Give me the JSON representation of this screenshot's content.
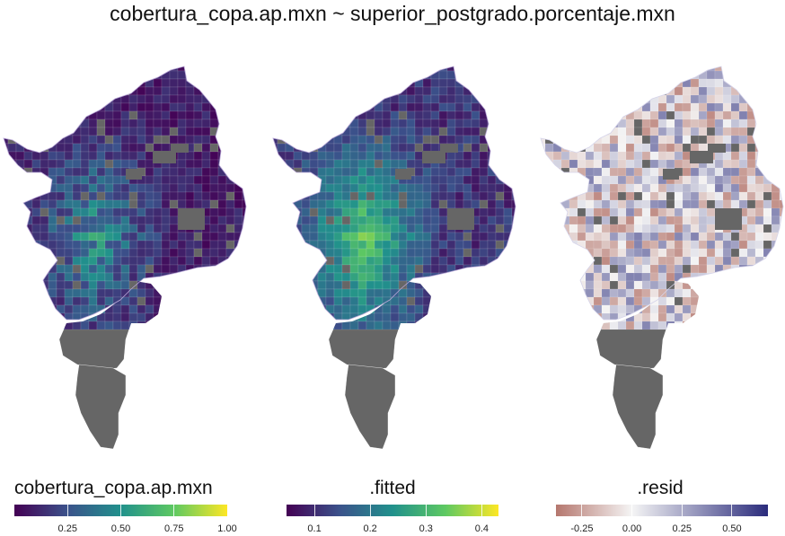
{
  "title": "cobertura_copa.ap.mxn ~ superior_postgrado.porcentaje.mxn",
  "colors": {
    "na_fill": "#666666",
    "viridis": [
      "#440154",
      "#3b528b",
      "#21918c",
      "#5ec962",
      "#fde725"
    ],
    "resid": [
      "#b5776e",
      "#f5f5f5",
      "#2b2c7c"
    ]
  },
  "panels": [
    {
      "id": "cobertura",
      "legend_title": "cobertura_copa.ap.mxn",
      "scale": "viridis",
      "ticks": [
        "0.25",
        "0.50",
        "0.75",
        "1.00"
      ],
      "tick_values": [
        0.25,
        0.5,
        0.75,
        1.0
      ],
      "range": [
        0.0,
        1.0
      ]
    },
    {
      "id": "fitted",
      "legend_title": ".fitted",
      "scale": "viridis",
      "ticks": [
        "0.1",
        "0.2",
        "0.3",
        "0.4"
      ],
      "tick_values": [
        0.1,
        0.2,
        0.3,
        0.4
      ],
      "range": [
        0.05,
        0.43
      ]
    },
    {
      "id": "resid",
      "legend_title": ".resid",
      "scale": "diverging",
      "ticks": [
        "-0.25",
        "0.00",
        "0.25",
        "0.50"
      ],
      "tick_values": [
        -0.25,
        0.0,
        0.25,
        0.5
      ],
      "range": [
        -0.38,
        0.68
      ]
    }
  ]
}
